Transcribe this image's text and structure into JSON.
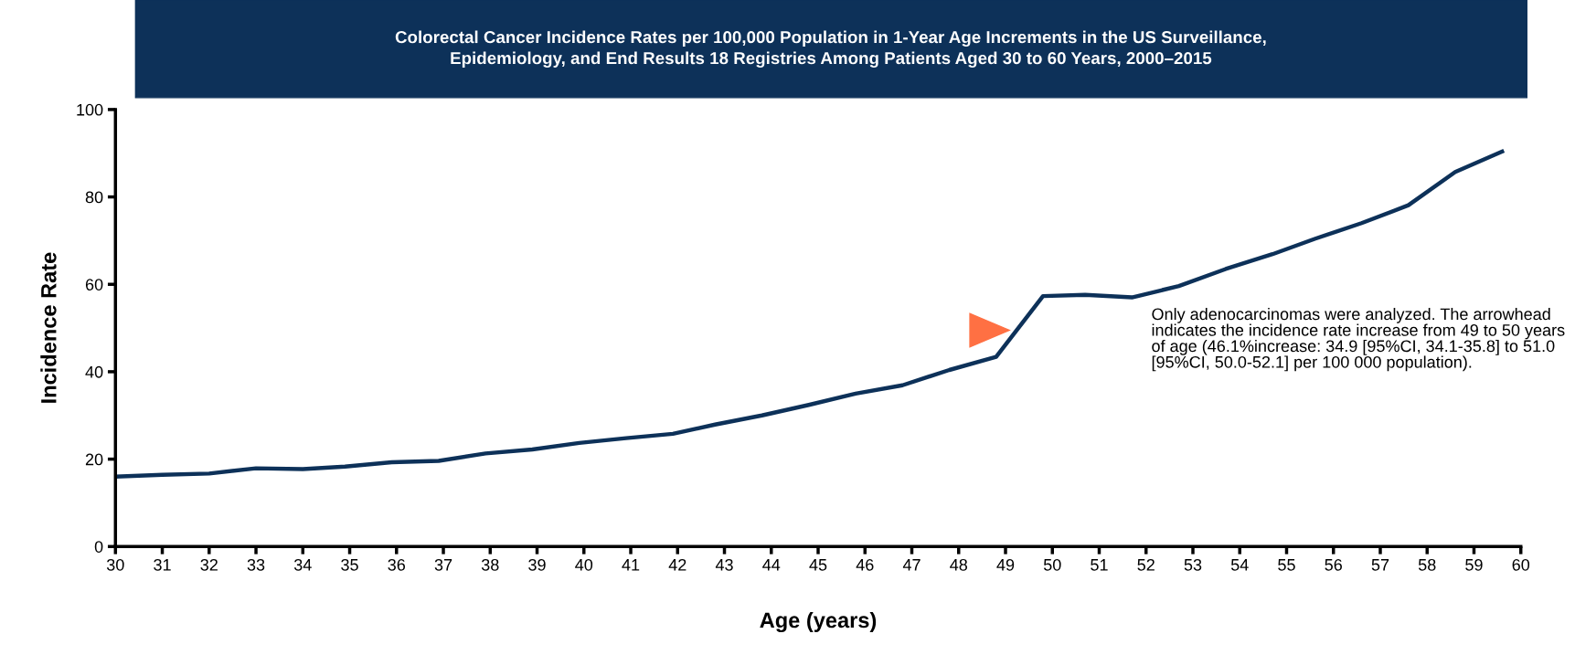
{
  "chart_data": {
    "type": "line",
    "title": "Colorectal Cancer Incidence Rates per 100,000 Population in 1-Year Age Increments in the US Surveillance,\nEpidemiology, and End Results 18 Registries Among Patients Aged 30 to 60 Years, 2000–2015",
    "xlabel": "Age (years)",
    "ylabel": "Incidence Rate",
    "x": [
      30,
      31.0,
      32.0,
      33.0,
      34.0,
      34.9,
      35.9,
      36.9,
      37.9,
      38.9,
      39.9,
      40.9,
      41.9,
      42.8,
      43.8,
      44.8,
      45.8,
      46.8,
      47.8,
      48.8,
      49.8,
      50.7,
      51.7,
      52.7,
      53.7,
      54.7,
      55.6,
      56.6,
      57.6,
      58.6,
      59.6
    ],
    "series": [
      {
        "color": "#0d3159",
        "values": [
          16.0,
          16.4,
          16.7,
          17.9,
          17.7,
          18.3,
          19.3,
          19.6,
          21.3,
          22.2,
          23.7,
          24.8,
          25.8,
          27.9,
          30.0,
          32.4,
          35.0,
          36.9,
          40.4,
          43.4,
          57.3,
          57.6,
          57.0,
          59.6,
          63.5,
          66.9,
          70.4,
          74.0,
          78.1,
          85.7,
          90.4
        ]
      }
    ],
    "xlim": [
      30,
      60
    ],
    "xticks": [
      30,
      31,
      32,
      33,
      34,
      35,
      36,
      37,
      38,
      39,
      40,
      41,
      42,
      43,
      44,
      45,
      46,
      47,
      48,
      49,
      50,
      51,
      52,
      53,
      54,
      55,
      56,
      57,
      58,
      59,
      60
    ],
    "ylim": [
      0,
      100
    ],
    "yticks": [
      0,
      20,
      40,
      60,
      80,
      100
    ],
    "grid": false,
    "legend": false,
    "marker": "none",
    "line_style": "solid",
    "annotations": [
      "Only adenocarcinomas were analyzed. The arrowhead indicates the incidence rate increase from 49 to 50 years of age (46.1%increase: 34.9 [95%CI, 34.1-35.8] to 51.0 [95%CI, 50.0-52.1] per 100 000 population)."
    ]
  }
}
